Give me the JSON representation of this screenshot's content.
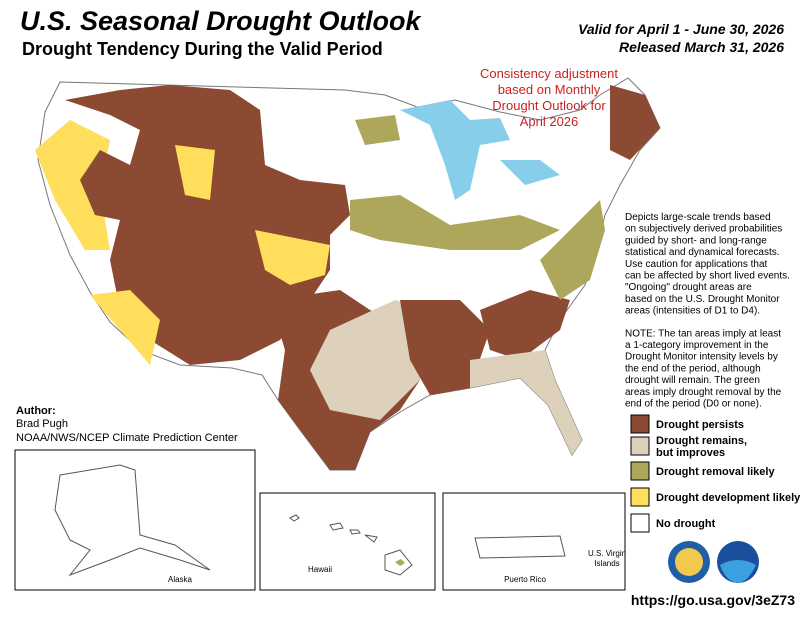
{
  "header": {
    "title": "U.S. Seasonal Drought Outlook",
    "subtitle": "Drought Tendency During the Valid Period",
    "valid": "Valid for April 1 - June 30, 2026",
    "released": "Released March 31, 2026"
  },
  "annotation": [
    "Consistency adjustment",
    "based on Monthly",
    "Drought Outlook for",
    "April 2026"
  ],
  "description": [
    "Depicts large-scale trends based",
    "on subjectively derived probabilities",
    "guided by short- and long-range",
    "statistical and dynamical forecasts.",
    "Use caution for applications that",
    "can be affected by short lived events.",
    "\"Ongoing\" drought areas are",
    "based on the U.S. Drought Monitor",
    "areas (intensities of D1 to D4)."
  ],
  "note": [
    "NOTE: The tan areas imply at least",
    "a 1-category improvement in the",
    "Drought Monitor intensity levels by",
    "the end of the period, although",
    "drought will remain. The green",
    "areas imply drought removal by the",
    "end of the period (D0 or none)."
  ],
  "legend": {
    "items": [
      {
        "label": [
          "Drought persists"
        ],
        "color": "#8c4a33"
      },
      {
        "label": [
          "Drought remains,",
          "but improves"
        ],
        "color": "#ddd1bc"
      },
      {
        "label": [
          "Drought removal likely"
        ],
        "color": "#aca75a"
      },
      {
        "label": [
          "Drought development likely"
        ],
        "color": "#ffde5c"
      },
      {
        "label": [
          "No drought"
        ],
        "color": "#ffffff"
      }
    ]
  },
  "author": {
    "heading": "Author:",
    "name": "Brad Pugh",
    "org": "NOAA/NWS/NCEP Climate Prediction Center"
  },
  "insets": {
    "alaska": "Alaska",
    "hawaii": "Hawaii",
    "puerto_rico": "Puerto Rico",
    "virgin_islands": [
      "U.S. Virgin",
      "Islands"
    ]
  },
  "url": "https://go.usa.gov/3eZ73"
}
